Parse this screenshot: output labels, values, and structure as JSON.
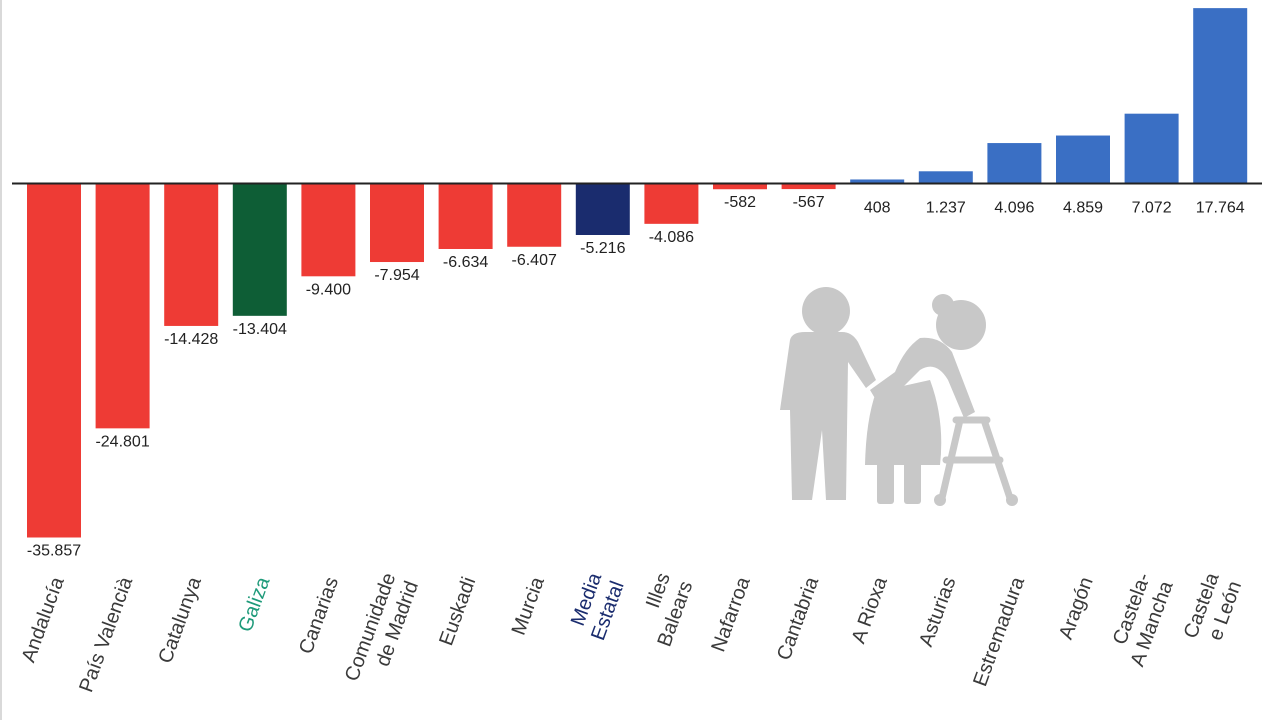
{
  "chart_data": {
    "type": "bar",
    "categories": [
      [
        "Andalucía"
      ],
      [
        "País Valencià"
      ],
      [
        "Catalunya"
      ],
      [
        "Galiza"
      ],
      [
        "Canarias"
      ],
      [
        "Comunidade",
        "de Madrid"
      ],
      [
        "Euskadi"
      ],
      [
        "Murcia"
      ],
      [
        "Media",
        "Estatal"
      ],
      [
        "Illes",
        "Balears"
      ],
      [
        "Nafarroa"
      ],
      [
        "Cantabria"
      ],
      [
        "A Rioxa"
      ],
      [
        "Asturias"
      ],
      [
        "Estremadura"
      ],
      [
        "Aragón"
      ],
      [
        "Castela-",
        "A Mancha"
      ],
      [
        "Castela",
        "e León"
      ]
    ],
    "values": [
      -35857,
      -24801,
      -14428,
      -13404,
      -9400,
      -7954,
      -6634,
      -6407,
      -5216,
      -4086,
      -582,
      -567,
      408,
      1237,
      4096,
      4859,
      7072,
      17764
    ],
    "value_labels": [
      "-35.857",
      "-24.801",
      "-14.428",
      "-13.404",
      "-9.400",
      "-7.954",
      "-6.634",
      "-6.407",
      "-5.216",
      "-4.086",
      "-582",
      "-567",
      "408",
      "1.237",
      "4.096",
      "4.859",
      "7.072",
      "17.764"
    ],
    "bar_colors": [
      "#ee3b35",
      "#ee3b35",
      "#ee3b35",
      "#0e5e36",
      "#ee3b35",
      "#ee3b35",
      "#ee3b35",
      "#ee3b35",
      "#1a2c6e",
      "#ee3b35",
      "#ee3b35",
      "#ee3b35",
      "#3a6fc4",
      "#3a6fc4",
      "#3a6fc4",
      "#3a6fc4",
      "#3a6fc4",
      "#3a6fc4"
    ],
    "label_colors": [
      "#3a3a3a",
      "#3a3a3a",
      "#3a3a3a",
      "#1e9a7a",
      "#3a3a3a",
      "#3a3a3a",
      "#3a3a3a",
      "#3a3a3a",
      "#1a2c6e",
      "#3a3a3a",
      "#3a3a3a",
      "#3a3a3a",
      "#3a3a3a",
      "#3a3a3a",
      "#3a3a3a",
      "#3a3a3a",
      "#3a3a3a",
      "#3a3a3a"
    ],
    "title": "",
    "xlabel": "",
    "ylabel": "",
    "ylim": [
      -36000,
      18000
    ],
    "grid": false,
    "legend": "none"
  },
  "decoration": {
    "icon": "elderly-couple-walker-icon",
    "icon_color": "#c8c8c8"
  }
}
